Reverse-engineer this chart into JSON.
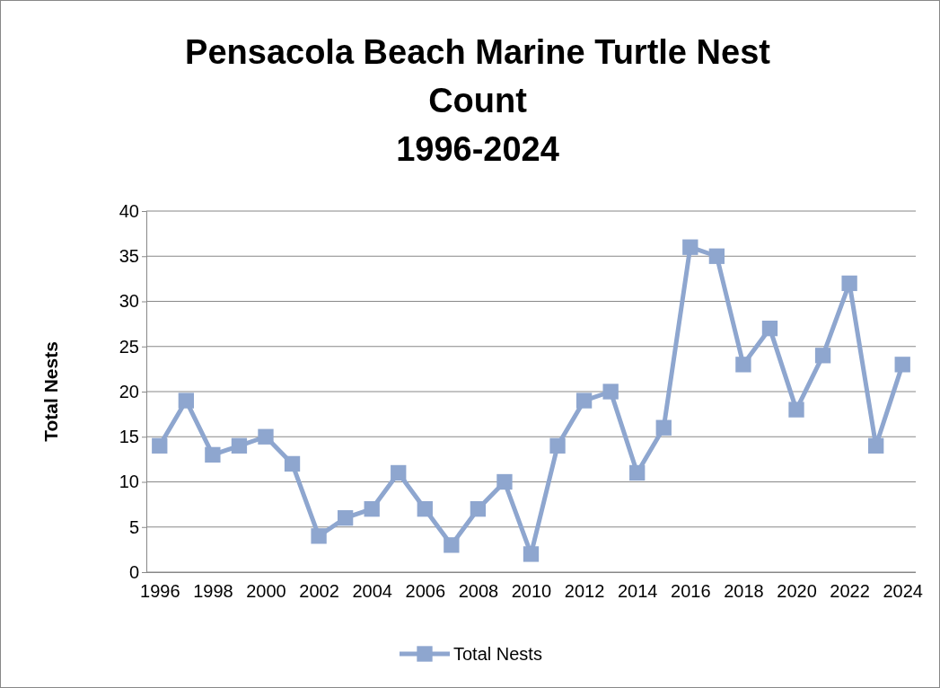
{
  "chart_data": {
    "type": "line",
    "title": "Pensacola Beach Marine Turtle Nest Count",
    "subtitle": "1996-2024",
    "ylabel": "Total Nests",
    "categories": [
      "1996",
      null,
      "1998",
      null,
      "2000",
      null,
      "2002",
      null,
      "2004",
      null,
      "2006",
      null,
      "2008",
      null,
      "2010",
      null,
      "2012",
      null,
      "2014",
      null,
      "2016",
      null,
      "2018",
      null,
      "2020",
      null,
      "2022",
      null,
      "2024"
    ],
    "series": [
      {
        "name": "Total Nests",
        "color": "#8ea6cf",
        "values": [
          14,
          19,
          13,
          14,
          15,
          12,
          4,
          6,
          7,
          11,
          7,
          3,
          7,
          10,
          2,
          14,
          19,
          20,
          11,
          16,
          36,
          35,
          23,
          27,
          18,
          24,
          32,
          14,
          23
        ]
      }
    ],
    "ylim": [
      0,
      40
    ],
    "yticks": [
      0,
      5,
      10,
      15,
      20,
      25,
      30,
      35,
      40
    ],
    "grid": "y",
    "legend": "bottom",
    "marker": "square",
    "line_style": "solid"
  }
}
